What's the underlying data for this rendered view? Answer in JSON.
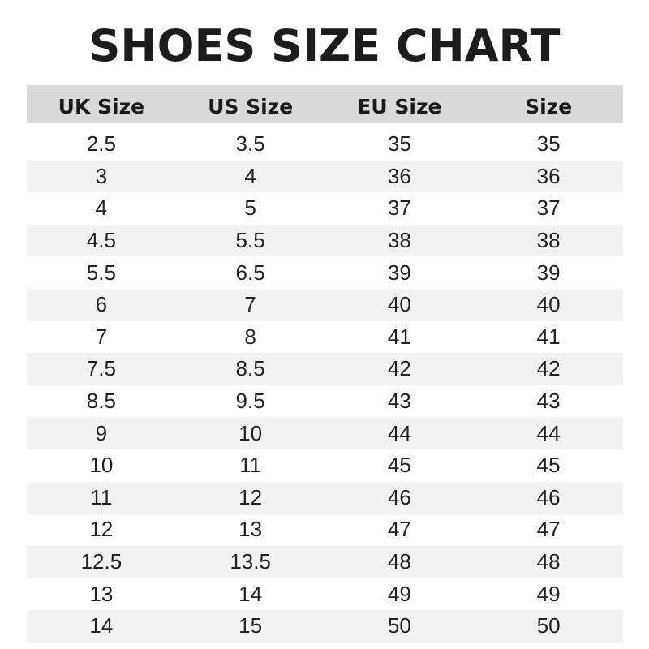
{
  "title": "SHOES SIZE CHART",
  "table": {
    "headers": [
      "UK Size",
      "US Size",
      "EU Size",
      "Size"
    ],
    "rows": [
      [
        "2.5",
        "3.5",
        "35",
        "35"
      ],
      [
        "3",
        "4",
        "36",
        "36"
      ],
      [
        "4",
        "5",
        "37",
        "37"
      ],
      [
        "4.5",
        "5.5",
        "38",
        "38"
      ],
      [
        "5.5",
        "6.5",
        "39",
        "39"
      ],
      [
        "6",
        "7",
        "40",
        "40"
      ],
      [
        "7",
        "8",
        "41",
        "41"
      ],
      [
        "7.5",
        "8.5",
        "42",
        "42"
      ],
      [
        "8.5",
        "9.5",
        "43",
        "43"
      ],
      [
        "9",
        "10",
        "44",
        "44"
      ],
      [
        "10",
        "11",
        "45",
        "45"
      ],
      [
        "11",
        "12",
        "46",
        "46"
      ],
      [
        "12",
        "13",
        "47",
        "47"
      ],
      [
        "12.5",
        "13.5",
        "48",
        "48"
      ],
      [
        "13",
        "14",
        "49",
        "49"
      ],
      [
        "14",
        "15",
        "50",
        "50"
      ]
    ]
  },
  "colors": {
    "header_bg": "#d9d9d9",
    "stripe_bg": "#f2f2f2",
    "text": "#1a1a1a"
  }
}
